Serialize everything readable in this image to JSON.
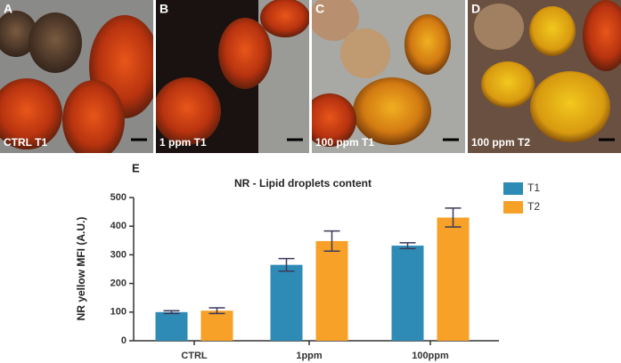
{
  "panels": [
    {
      "letter": "A",
      "caption": "CTRL T1"
    },
    {
      "letter": "B",
      "caption": "1 ppm T1"
    },
    {
      "letter": "C",
      "caption": "100 ppm T1"
    },
    {
      "letter": "D",
      "caption": "100 ppm T2"
    }
  ],
  "chart_data": {
    "type": "bar",
    "panel_label": "E",
    "title": "NR - Lipid droplets content",
    "y_label": "NR yellow MFI (A.U.)",
    "categories": [
      "CTRL",
      "1ppm",
      "100ppm"
    ],
    "series": [
      {
        "name": "T1",
        "color": "#2e8bb6",
        "values": [
          100,
          265,
          332
        ],
        "errors": [
          5,
          22,
          10
        ]
      },
      {
        "name": "T2",
        "color": "#f7a128",
        "values": [
          105,
          348,
          430
        ],
        "errors": [
          10,
          35,
          33
        ]
      }
    ],
    "ylim": [
      0,
      500
    ],
    "yticks": [
      0,
      100,
      200,
      300,
      400,
      500
    ],
    "legend": "right"
  }
}
